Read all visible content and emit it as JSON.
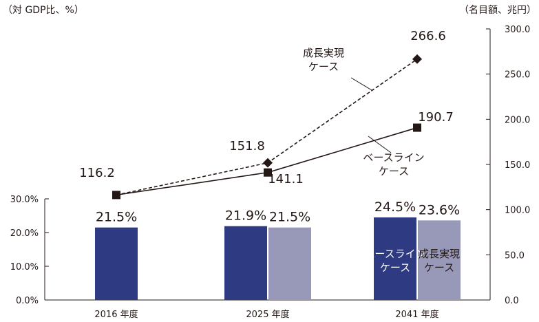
{
  "left_axis_unit": "（対 GDP比、%）",
  "right_axis_unit": "（名目額、兆円）",
  "chart_data": {
    "type": "bar+line",
    "categories": [
      "2016 年度",
      "2025 年度",
      "2041 年度"
    ],
    "left_axis": {
      "ticks": [
        "0.0%",
        "10.0%",
        "20.0%",
        "30.0%"
      ],
      "ylim": [
        0,
        30
      ]
    },
    "right_axis": {
      "ticks": [
        "0.0",
        "50.0",
        "100.0",
        "150.0",
        "200.0",
        "250.0",
        "300.0"
      ],
      "ylim": [
        0,
        300
      ]
    },
    "bar_series": [
      {
        "name": "ベースラインケース",
        "color": "#2e3a82",
        "values": [
          21.5,
          21.9,
          24.5
        ],
        "labels": [
          "21.5%",
          "21.9%",
          "24.5%"
        ],
        "inline_label_lines": [
          "ベースライン",
          "ケース"
        ]
      },
      {
        "name": "成長実現ケース",
        "color": "#9899b8",
        "values": [
          null,
          21.5,
          23.6
        ],
        "labels": [
          "",
          "21.5%",
          "23.6%"
        ],
        "inline_label_lines": [
          "成長実現",
          "ケース"
        ]
      }
    ],
    "line_series": [
      {
        "name": "成長実現ケース",
        "style": "dashed",
        "marker": "diamond",
        "values": [
          116.2,
          151.8,
          266.6
        ],
        "labels": [
          "116.2",
          "151.8",
          "266.6"
        ],
        "callout_lines": [
          "成長実現",
          "ケース"
        ]
      },
      {
        "name": "ベースラインケース",
        "style": "solid",
        "marker": "square",
        "values": [
          116.2,
          141.1,
          190.7
        ],
        "labels": [
          "",
          "141.1",
          "190.7"
        ],
        "callout_lines": [
          "ベースライン",
          "ケース"
        ]
      }
    ]
  }
}
